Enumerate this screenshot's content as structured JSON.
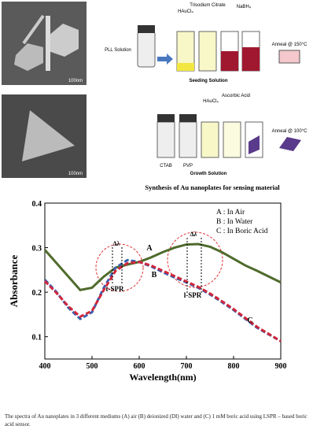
{
  "figure": {
    "scale_bars": [
      "100nm",
      "100nm"
    ],
    "seeding": {
      "reagents": [
        "HAuCl₄",
        "Trisodium Citrate",
        "NaBH₄"
      ],
      "start": "PLL Solution",
      "anneal": "Anneal @ 150°C",
      "label": "Seeding Solution"
    },
    "growth": {
      "reagents": [
        "HAuCl₄",
        "Ascorbic Acid"
      ],
      "vials": [
        "CTAB",
        "PVP"
      ],
      "anneal": "Anneal @ 100°C",
      "label": "Growth Solution"
    },
    "title": "Synthesis of Au nanoplates for sensing material"
  },
  "chart_data": {
    "type": "line",
    "x": [
      400,
      425,
      450,
      475,
      500,
      525,
      550,
      575,
      600,
      625,
      650,
      675,
      700,
      725,
      750,
      775,
      800,
      825,
      850,
      875,
      900
    ],
    "series": [
      {
        "name": "A : In Air",
        "color": "#4f6b2c",
        "dash": "none",
        "values": [
          0.295,
          0.265,
          0.235,
          0.205,
          0.21,
          0.235,
          0.255,
          0.262,
          0.268,
          0.278,
          0.29,
          0.3,
          0.307,
          0.308,
          0.302,
          0.29,
          0.275,
          0.26,
          0.248,
          0.235,
          0.222
        ]
      },
      {
        "name": "B : In Water",
        "color": "#3a5fb0",
        "dash": "6 3",
        "values": [
          0.228,
          0.2,
          0.165,
          0.14,
          0.155,
          0.21,
          0.255,
          0.272,
          0.268,
          0.258,
          0.245,
          0.233,
          0.222,
          0.21,
          0.195,
          0.178,
          0.16,
          0.14,
          0.12,
          0.105,
          0.09
        ]
      },
      {
        "name": "C : In Boric Acid",
        "color": "#d0263a",
        "dash": "6 3",
        "values": [
          0.225,
          0.198,
          0.168,
          0.145,
          0.158,
          0.205,
          0.248,
          0.265,
          0.268,
          0.26,
          0.248,
          0.236,
          0.224,
          0.212,
          0.197,
          0.18,
          0.162,
          0.142,
          0.122,
          0.106,
          0.09
        ]
      }
    ],
    "xlim": [
      400,
      900
    ],
    "xticks": [
      400,
      500,
      600,
      700,
      800,
      900
    ],
    "ylim": [
      0.05,
      0.4
    ],
    "yticks": [
      0.1,
      0.2,
      0.3,
      0.4
    ],
    "xlabel": "Wavelength(nm)",
    "ylabel": "Absorbance",
    "legend": "upper right",
    "annotations": [
      "A",
      "B",
      "C",
      "Δλ",
      "Δλ",
      "t-SPR",
      "l-SPR"
    ]
  },
  "caption": "The spectra of Au nanoplates in 3 different mediums (A) air (B) deionized (DI) water and (C) 1 mM boric acid using LSPR – based boric acid sensor."
}
